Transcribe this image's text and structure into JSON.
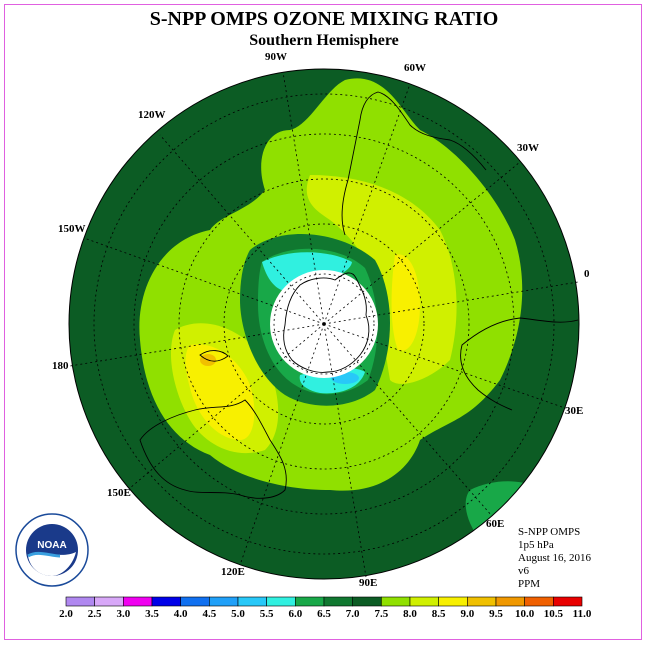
{
  "title": "S-NPP OMPS OZONE MIXING RATIO",
  "subtitle": "Southern Hemisphere",
  "longitude_labels": {
    "w90": "90W",
    "w60": "60W",
    "w120": "120W",
    "w30": "30W",
    "w150": "150W",
    "zero": "0",
    "lon180": "180",
    "e30": "30E",
    "e150": "150E",
    "e60": "60E",
    "e120": "120E",
    "e90": "90E"
  },
  "info": {
    "instrument": "S-NPP OMPS",
    "level": "1p5 hPa",
    "date": "August 16, 2016",
    "version": "v6",
    "units": "PPM"
  },
  "logo_text": "NOAA",
  "colorbar": {
    "labels": [
      "2.0",
      "2.5",
      "3.0",
      "3.5",
      "4.0",
      "4.5",
      "5.0",
      "5.5",
      "6.0",
      "6.5",
      "7.0",
      "7.5",
      "8.0",
      "8.5",
      "9.0",
      "9.5",
      "10.0",
      "10.5",
      "11.0"
    ],
    "colors": [
      "#b088f0",
      "#d8a8f8",
      "#f000f0",
      "#0000e8",
      "#1070f0",
      "#20a0f8",
      "#28c8f8",
      "#30f0e0",
      "#18a848",
      "#107830",
      "#0c5c24",
      "#90e000",
      "#d0f000",
      "#f8f000",
      "#f0c000",
      "#f09800",
      "#f06000",
      "#e80000",
      "#a0522d"
    ]
  },
  "map": {
    "background_color": "#0c5c24"
  }
}
